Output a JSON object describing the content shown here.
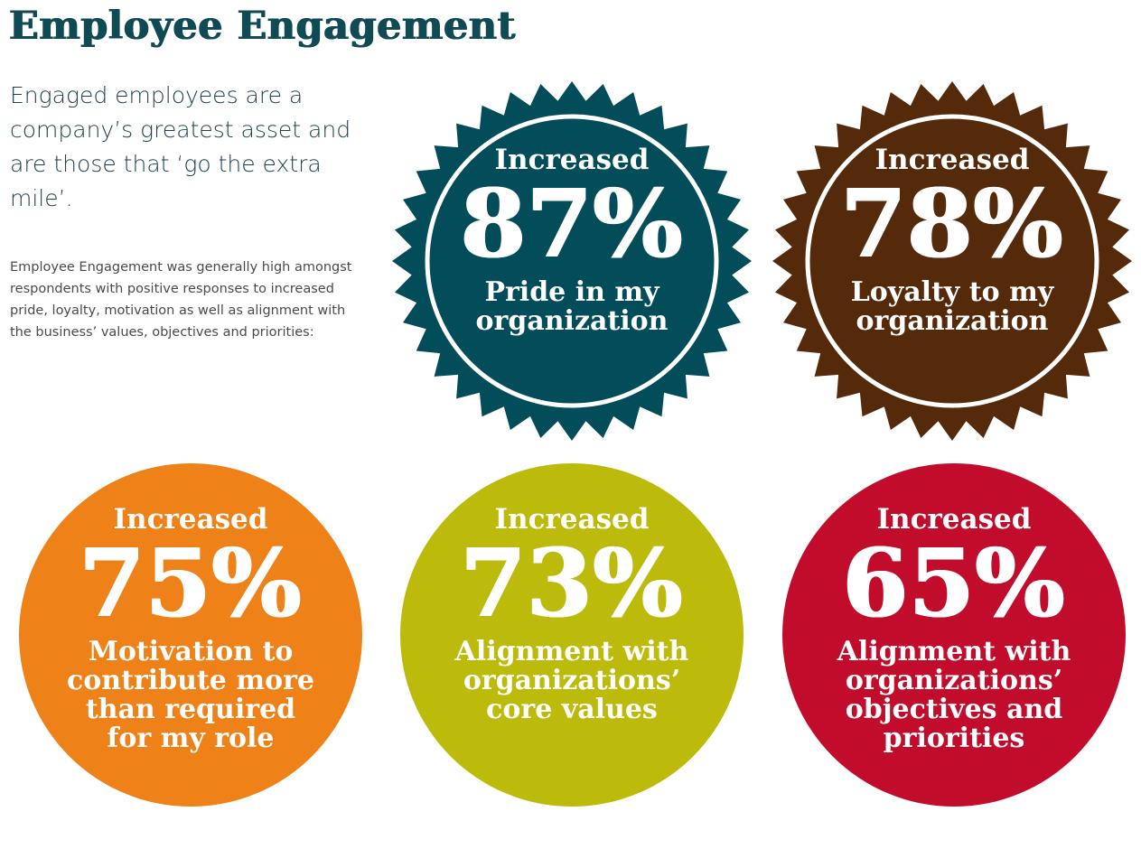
{
  "header": {
    "title": "Employee Engagement"
  },
  "intro": {
    "lead": "Engaged employees are a company’s greatest asset and are those that ‘go the extra mile’.",
    "body": "Employee Engagement was generally high amongst respondents with positive responses to increased pride, loyalty, motivation as well as alignment with the business’ values, objectives and priorities:"
  },
  "badges": [
    {
      "label_top": "Increased",
      "percent": "87%",
      "caption": "Pride in my\norganization",
      "color": "#034c5a",
      "shape": "starburst"
    },
    {
      "label_top": "Increased",
      "percent": "78%",
      "caption": "Loyalty to my\norganization",
      "color": "#542a0b",
      "shape": "starburst"
    },
    {
      "label_top": "Increased",
      "percent": "75%",
      "caption": "Motivation to\ncontribute more\nthan required\nfor my role",
      "color": "#ee8118",
      "shape": "circle"
    },
    {
      "label_top": "Increased",
      "percent": "73%",
      "caption": "Alignment with\norganizations’\ncore values",
      "color": "#bcba0b",
      "shape": "circle"
    },
    {
      "label_top": "Increased",
      "percent": "65%",
      "caption": "Alignment with\norganizations’\nobjectives and\npriorities",
      "color": "#c10d2b",
      "shape": "circle"
    }
  ]
}
